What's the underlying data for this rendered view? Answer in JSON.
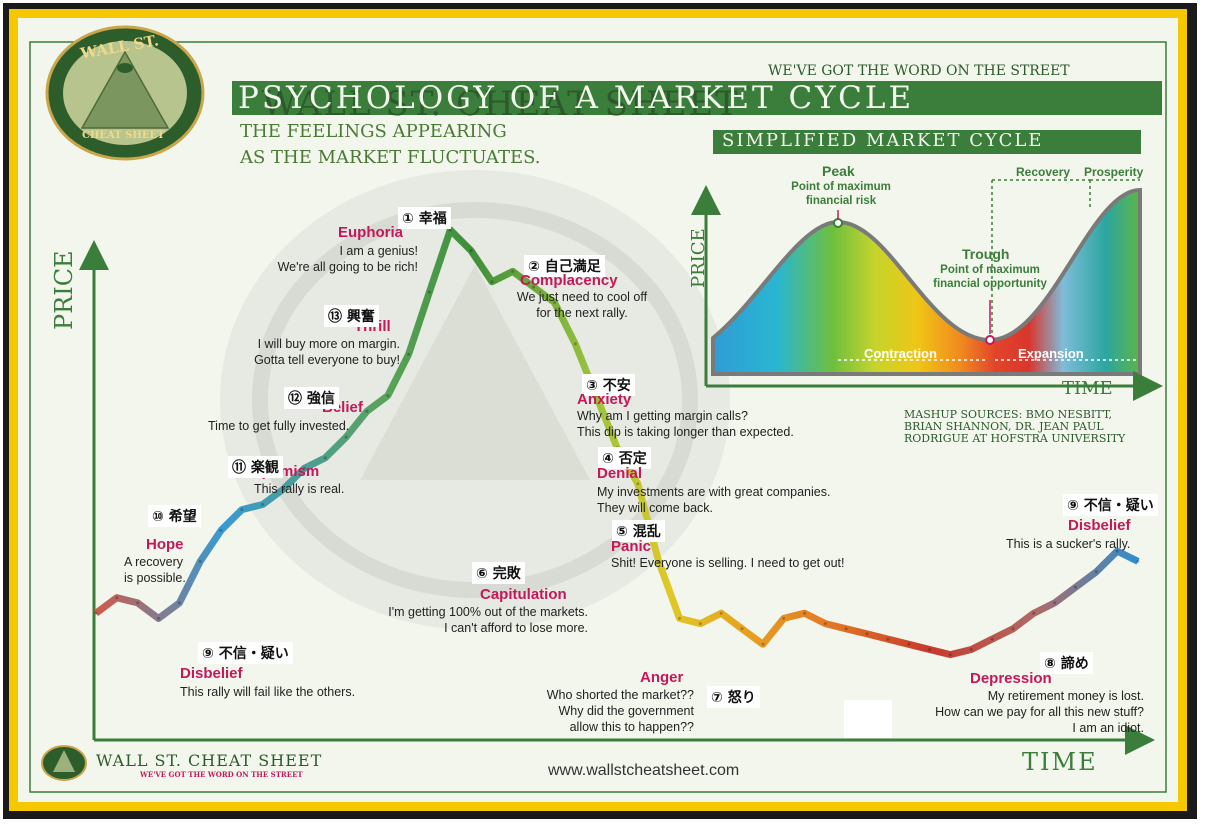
{
  "header": {
    "brand": "WALL ST. CHEAT SHEET",
    "trademark": "™",
    "tagline": "WE'VE GOT THE WORD ON THE STREET",
    "title": "PSYCHOLOGY OF A MARKET CYCLE",
    "subtitle_line1": "THE FEELINGS APPEARING",
    "subtitle_line2": "AS THE MARKET FLUCTUATES."
  },
  "badge": {
    "top": "WALL ST.",
    "bottom": "CHEAT SHEET"
  },
  "axes": {
    "y_label": "PRICE",
    "x_label": "TIME"
  },
  "stages": [
    {
      "num": "① 幸福",
      "title": "Euphoria",
      "text": "I am a genius!\nWe're all going to be rich!"
    },
    {
      "num": "② 自己満足",
      "title": "Complacency",
      "text": "We just need to cool off\nfor the next rally."
    },
    {
      "num": "③ 不安",
      "title": "Anxiety",
      "text": "Why am I getting margin calls?\nThis dip is taking longer than expected."
    },
    {
      "num": "④ 否定",
      "title": "Denial",
      "text": "My investments are with great companies.\nThey will come back."
    },
    {
      "num": "⑤ 混乱",
      "title": "Panic",
      "text": "Shit! Everyone is selling. I need to get out!"
    },
    {
      "num": "⑥ 完敗",
      "title": "Capitulation",
      "text": "I'm getting 100% out of the markets.\nI can't afford to lose more."
    },
    {
      "num": "⑦ 怒り",
      "title": "Anger",
      "text": "Who shorted the market??\nWhy did the government\nallow this to happen??"
    },
    {
      "num": "⑧ 諦め",
      "title": "Depression",
      "text": "My retirement money is lost.\nHow can we pay for all this new stuff?\nI am an idiot."
    },
    {
      "num": "⑨ 不信・疑い",
      "title": "Disbelief",
      "text": "This rally will fail like the others."
    },
    {
      "num": "⑩ 希望",
      "title": "Hope",
      "text": "A recovery\nis possible."
    },
    {
      "num": "⑪ 楽観",
      "title": "Optimism",
      "text": "This rally is real."
    },
    {
      "num": "⑫ 強信",
      "title": "Belief",
      "text": "Time to get fully invested."
    },
    {
      "num": "⑬ 興奮",
      "title": "Thrill",
      "text": "I will buy more on margin.\nGotta tell everyone to buy!"
    },
    {
      "num": "⑨ 不信・疑い",
      "title": "Disbelief",
      "text": "This is a sucker's rally."
    }
  ],
  "simplified": {
    "title": "SIMPLIFIED MARKET CYCLE",
    "peak_title": "Peak",
    "peak_text": "Point of maximum\nfinancial risk",
    "trough_title": "Trough",
    "trough_text": "Point of maximum\nfinancial opportunity",
    "recovery": "Recovery",
    "prosperity": "Prosperity",
    "contraction": "Contraction",
    "expansion": "Expansion",
    "y_label": "PRICE",
    "x_label": "TIME"
  },
  "sources": {
    "line1": "MASHUP SOURCES: BMO NESBITT,",
    "line2": "BRIAN SHANNON, DR. JEAN PAUL",
    "line3": "RODRIGUE AT HOFSTRA UNIVERSITY"
  },
  "footer": {
    "brand": "WALL ST. CHEAT SHEET",
    "tagline": "WE'VE GOT THE WORD ON THE STREET",
    "url": "www.wallstcheatsheet.com"
  },
  "colors": {
    "frame_yellow": "#f5c800",
    "green": "#3b7d3a",
    "title_green": "#4a7a36",
    "stage_red": "#c4185a",
    "background": "#f3f6ec"
  },
  "chart_data": {
    "type": "line",
    "x": [
      0,
      2,
      4,
      6,
      8,
      10,
      12,
      14,
      16,
      18,
      20,
      22,
      24,
      26,
      28,
      30,
      32,
      34,
      36,
      38,
      40,
      42,
      44,
      46,
      48,
      50,
      52,
      54,
      56,
      58,
      60,
      62,
      64,
      66,
      68,
      70,
      72,
      74,
      76,
      78,
      80,
      82,
      84,
      86,
      88,
      90,
      92,
      94,
      96,
      98,
      100
    ],
    "values": [
      10,
      13,
      12,
      9,
      12,
      20,
      26,
      30,
      31,
      34,
      38,
      40,
      44,
      49,
      52,
      60,
      72,
      84,
      80,
      74,
      76,
      73,
      70,
      62,
      52,
      42,
      35,
      20,
      9,
      8,
      10,
      7,
      4,
      9,
      10,
      8,
      7,
      6,
      5,
      4,
      3,
      2,
      3,
      5,
      7,
      10,
      12,
      15,
      18,
      22,
      20
    ]
  }
}
